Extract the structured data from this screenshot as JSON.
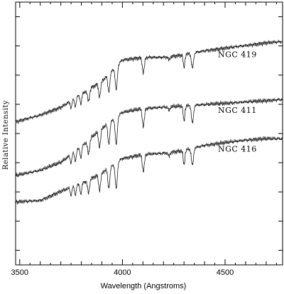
{
  "chart_data": {
    "type": "line",
    "xlabel": "Wavelength (Angstroms)",
    "ylabel": "Relative Intensity",
    "xlim": [
      3480,
      4780
    ],
    "ylim": [
      0,
      1
    ],
    "x_ticks": [
      3500,
      4000,
      4500
    ],
    "x_tick_labels": [
      "3500",
      "4000",
      "4500"
    ],
    "y_tick_count": 9,
    "y_tick_labels": [],
    "grid": false,
    "legend": "none",
    "series": [
      {
        "name": "NGC 419",
        "label": "NGC 419",
        "continuum": [
          [
            3480,
            0.545
          ],
          [
            3600,
            0.57
          ],
          [
            3700,
            0.6
          ],
          [
            3800,
            0.65
          ],
          [
            3900,
            0.7
          ],
          [
            4000,
            0.78
          ],
          [
            4100,
            0.79
          ],
          [
            4200,
            0.79
          ],
          [
            4300,
            0.8
          ],
          [
            4400,
            0.815
          ],
          [
            4500,
            0.825
          ],
          [
            4600,
            0.835
          ],
          [
            4700,
            0.845
          ],
          [
            4780,
            0.85
          ]
        ]
      },
      {
        "name": "NGC 411",
        "label": "NGC 411",
        "continuum": [
          [
            3480,
            0.34
          ],
          [
            3600,
            0.36
          ],
          [
            3700,
            0.39
          ],
          [
            3800,
            0.45
          ],
          [
            3900,
            0.52
          ],
          [
            4000,
            0.58
          ],
          [
            4100,
            0.595
          ],
          [
            4200,
            0.6
          ],
          [
            4300,
            0.605
          ],
          [
            4400,
            0.61
          ],
          [
            4500,
            0.615
          ],
          [
            4600,
            0.62
          ],
          [
            4700,
            0.625
          ],
          [
            4780,
            0.63
          ]
        ]
      },
      {
        "name": "NGC 416",
        "label": "NGC 416",
        "continuum": [
          [
            3480,
            0.24
          ],
          [
            3600,
            0.245
          ],
          [
            3700,
            0.28
          ],
          [
            3800,
            0.31
          ],
          [
            3900,
            0.35
          ],
          [
            4000,
            0.405
          ],
          [
            4100,
            0.42
          ],
          [
            4200,
            0.425
          ],
          [
            4300,
            0.435
          ],
          [
            4400,
            0.455
          ],
          [
            4500,
            0.465
          ],
          [
            4600,
            0.475
          ],
          [
            4700,
            0.48
          ],
          [
            4780,
            0.48
          ]
        ]
      }
    ],
    "absorption_lines_angstrom": [
      3750,
      3771,
      3798,
      3835,
      3889,
      3934,
      3970,
      4102,
      4227,
      4300,
      4341
    ]
  }
}
